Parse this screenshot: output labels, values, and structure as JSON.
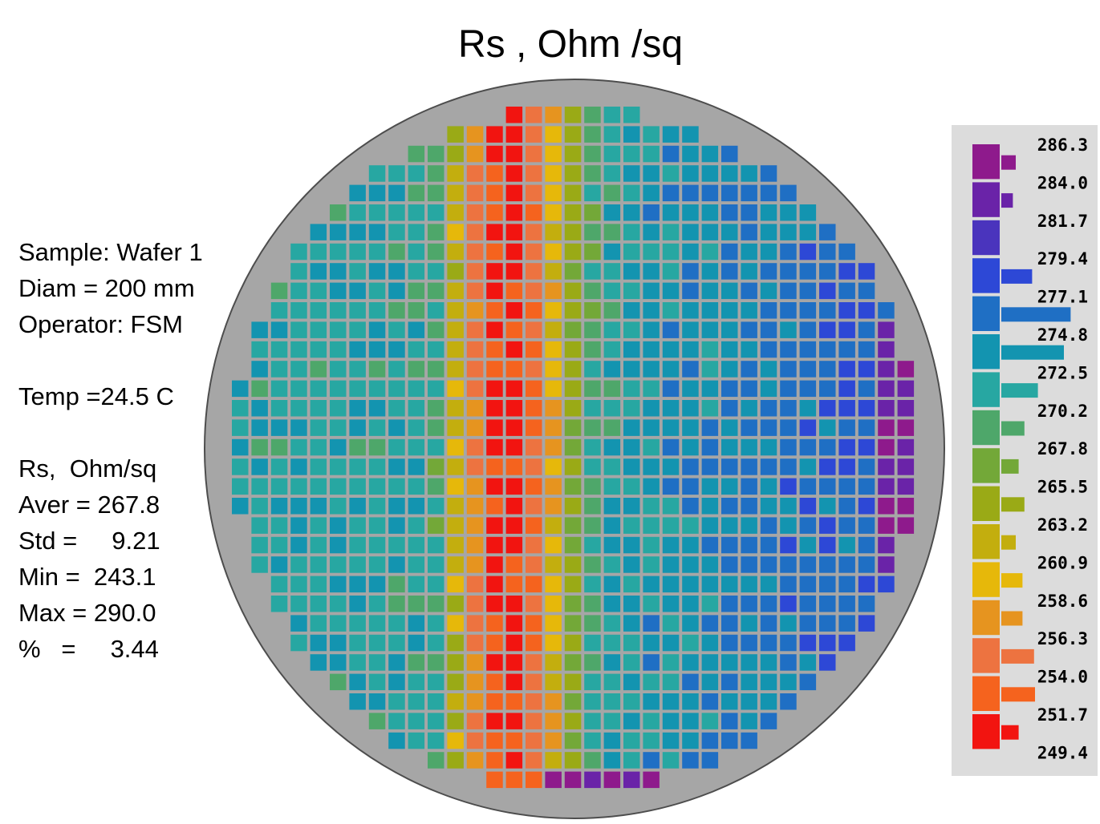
{
  "chart_data": {
    "type": "heatmap",
    "title": "Rs , Ohm /sq",
    "description_stats": {
      "sample": "Sample: Wafer 1",
      "diam": "Diam = 200 mm",
      "operator": "Operator: FSM",
      "temp": "Temp =24.5 C",
      "units": "Rs,  Ohm/sq",
      "aver": "Aver = 267.8",
      "std": "Std =     9.21",
      "min": "Min =  243.1",
      "max": "Max = 290.0",
      "pct": "%   =     3.44"
    },
    "legend": {
      "ticks": [
        "286.3",
        "284.0",
        "281.7",
        "279.4",
        "277.1",
        "274.8",
        "272.5",
        "270.2",
        "267.8",
        "265.5",
        "263.2",
        "260.9",
        "258.6",
        "256.3",
        "254.0",
        "251.7",
        "249.4"
      ],
      "colors": [
        "#8e1a8c",
        "#6a23a8",
        "#4a34bd",
        "#2d48d6",
        "#1f6fc4",
        "#1394b0",
        "#27a7a2",
        "#4ea76a",
        "#73a838",
        "#9aaa16",
        "#c3ae0e",
        "#e6b80a",
        "#e6941f",
        "#ed7340",
        "#f5631e",
        "#f21410"
      ],
      "histogram": [
        0.15,
        0.12,
        0.0,
        0.32,
        0.72,
        0.65,
        0.38,
        0.24,
        0.18,
        0.24,
        0.15,
        0.22,
        0.22,
        0.34,
        0.35,
        0.18
      ]
    },
    "grid": {
      "rows": 35,
      "cols": 35,
      "wafer_diameter_mm": 200
    }
  }
}
